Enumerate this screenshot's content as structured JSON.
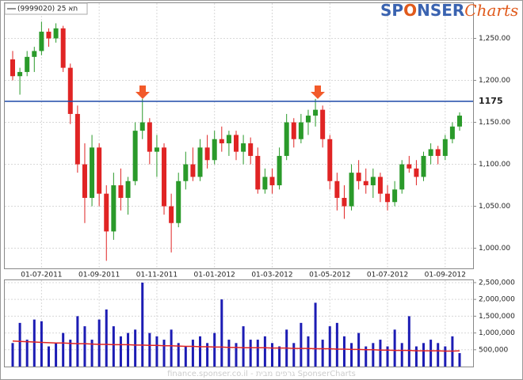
{
  "chart_data": [
    {
      "type": "candlestick",
      "legend": "(9999020) 25 תא",
      "logo": [
        "SP",
        "O",
        "NSER",
        "Charts"
      ],
      "categories": [
        null,
        null,
        null,
        null,
        "01-07-2011",
        null,
        null,
        null,
        null,
        null,
        null,
        null,
        "01-09-2011",
        null,
        null,
        null,
        null,
        null,
        null,
        null,
        "01-11-2011",
        null,
        null,
        null,
        null,
        null,
        null,
        null,
        "01-01-2012",
        null,
        null,
        null,
        null,
        null,
        null,
        null,
        "01-03-2012",
        null,
        null,
        null,
        null,
        null,
        null,
        null,
        "01-05-2012",
        null,
        null,
        null,
        null,
        null,
        null,
        null,
        "01-07-2012",
        null,
        null,
        null,
        null,
        null,
        null,
        null,
        "01-09-2012",
        null,
        null
      ],
      "open": [
        1225,
        1205,
        1210,
        1228,
        1235,
        1258,
        1250,
        1262,
        1215,
        1160,
        1100,
        1060,
        1120,
        1065,
        1020,
        1075,
        1060,
        1080,
        1140,
        1150,
        1115,
        1120,
        1050,
        1030,
        1080,
        1100,
        1085,
        1120,
        1105,
        1130,
        1125,
        1135,
        1115,
        1125,
        1110,
        1070,
        1085,
        1075,
        1110,
        1150,
        1130,
        1150,
        1158,
        1165,
        1130,
        1080,
        1060,
        1050,
        1090,
        1080,
        1075,
        1085,
        1065,
        1055,
        1070,
        1100,
        1095,
        1085,
        1110,
        1118,
        1110,
        1130,
        1145
      ],
      "high": [
        1235,
        1215,
        1235,
        1240,
        1270,
        1262,
        1268,
        1265,
        1220,
        1170,
        1125,
        1135,
        1125,
        1075,
        1090,
        1095,
        1085,
        1150,
        1178,
        1155,
        1135,
        1125,
        1065,
        1090,
        1115,
        1120,
        1130,
        1135,
        1140,
        1145,
        1140,
        1140,
        1135,
        1132,
        1120,
        1095,
        1095,
        1120,
        1160,
        1155,
        1160,
        1165,
        1178,
        1170,
        1135,
        1090,
        1075,
        1100,
        1105,
        1095,
        1095,
        1090,
        1075,
        1080,
        1105,
        1110,
        1105,
        1115,
        1125,
        1122,
        1135,
        1150,
        1162
      ],
      "low": [
        1200,
        1183,
        1205,
        1210,
        1230,
        1240,
        1245,
        1210,
        1148,
        1090,
        1030,
        1050,
        1050,
        985,
        1010,
        1045,
        1040,
        1075,
        1130,
        1100,
        1085,
        1040,
        995,
        1025,
        1070,
        1080,
        1080,
        1095,
        1100,
        1115,
        1110,
        1105,
        1100,
        1100,
        1065,
        1065,
        1065,
        1070,
        1105,
        1120,
        1125,
        1135,
        1145,
        1120,
        1070,
        1045,
        1035,
        1045,
        1070,
        1065,
        1060,
        1055,
        1045,
        1050,
        1065,
        1090,
        1075,
        1080,
        1100,
        1100,
        1105,
        1125,
        1140
      ],
      "close": [
        1205,
        1210,
        1228,
        1235,
        1258,
        1250,
        1262,
        1215,
        1160,
        1100,
        1060,
        1120,
        1065,
        1020,
        1075,
        1060,
        1080,
        1140,
        1150,
        1115,
        1120,
        1050,
        1030,
        1080,
        1100,
        1085,
        1120,
        1105,
        1130,
        1125,
        1135,
        1115,
        1125,
        1110,
        1070,
        1085,
        1075,
        1110,
        1150,
        1130,
        1150,
        1158,
        1165,
        1130,
        1080,
        1060,
        1050,
        1090,
        1080,
        1075,
        1085,
        1065,
        1055,
        1070,
        1100,
        1095,
        1085,
        1110,
        1118,
        1110,
        1130,
        1145,
        1158
      ],
      "up_color": "#2a9a2a",
      "down_color": "#e02424",
      "reference_line": 1175,
      "reference_color": "#1f4aa8",
      "ylim": [
        976,
        1292
      ],
      "yticks": [
        {
          "value": 1000,
          "label": "1,000.00"
        },
        {
          "value": 1050,
          "label": "1,050.00"
        },
        {
          "value": 1100,
          "label": "1,100.00"
        },
        {
          "value": 1150,
          "label": "1,150.00"
        },
        {
          "value": 1200,
          "label": "1,200.00"
        },
        {
          "value": 1250,
          "label": "1,250.00"
        }
      ],
      "grid": true
    },
    {
      "type": "bar",
      "values": [
        700000,
        1300000,
        800000,
        1400000,
        1350000,
        600000,
        700000,
        1000000,
        800000,
        1500000,
        1200000,
        800000,
        1400000,
        1700000,
        1200000,
        900000,
        1000000,
        1100000,
        2500000,
        1000000,
        900000,
        800000,
        1100000,
        700000,
        600000,
        800000,
        900000,
        700000,
        1000000,
        2000000,
        800000,
        700000,
        1200000,
        800000,
        800000,
        900000,
        700000,
        600000,
        1100000,
        700000,
        1300000,
        900000,
        1900000,
        800000,
        1200000,
        1300000,
        900000,
        700000,
        1000000,
        600000,
        700000,
        800000,
        600000,
        1100000,
        700000,
        1500000,
        600000,
        700000,
        800000,
        700000,
        600000,
        900000,
        400000
      ],
      "color": "#1c1cb4",
      "average": [
        760000,
        750000,
        740000,
        730000,
        720000,
        710000,
        700000,
        700000,
        690000,
        680000,
        680000,
        670000,
        660000,
        660000,
        650000,
        650000,
        650000,
        640000,
        640000,
        630000,
        630000,
        620000,
        620000,
        610000,
        600000,
        600000,
        590000,
        590000,
        580000,
        580000,
        570000,
        570000,
        560000,
        560000,
        560000,
        560000,
        550000,
        550000,
        550000,
        540000,
        540000,
        540000,
        530000,
        530000,
        530000,
        520000,
        520000,
        510000,
        510000,
        500000,
        500000,
        490000,
        490000,
        480000,
        480000,
        480000,
        470000,
        470000,
        470000,
        470000,
        460000,
        460000,
        470000
      ],
      "average_color": "#e02424",
      "ylim": [
        0,
        2570000
      ],
      "yticks": [
        {
          "value": 500000,
          "label": "500,000"
        },
        {
          "value": 1000000,
          "label": "1,000,000"
        },
        {
          "value": 1500000,
          "label": "1,500,000"
        },
        {
          "value": 2000000,
          "label": "2,000,000"
        },
        {
          "value": 2500000,
          "label": "2,500,000"
        }
      ],
      "grid": true
    },
    {
      "footer": "finance.sponser.co.il - גרפים מבית SponserCharts"
    }
  ]
}
